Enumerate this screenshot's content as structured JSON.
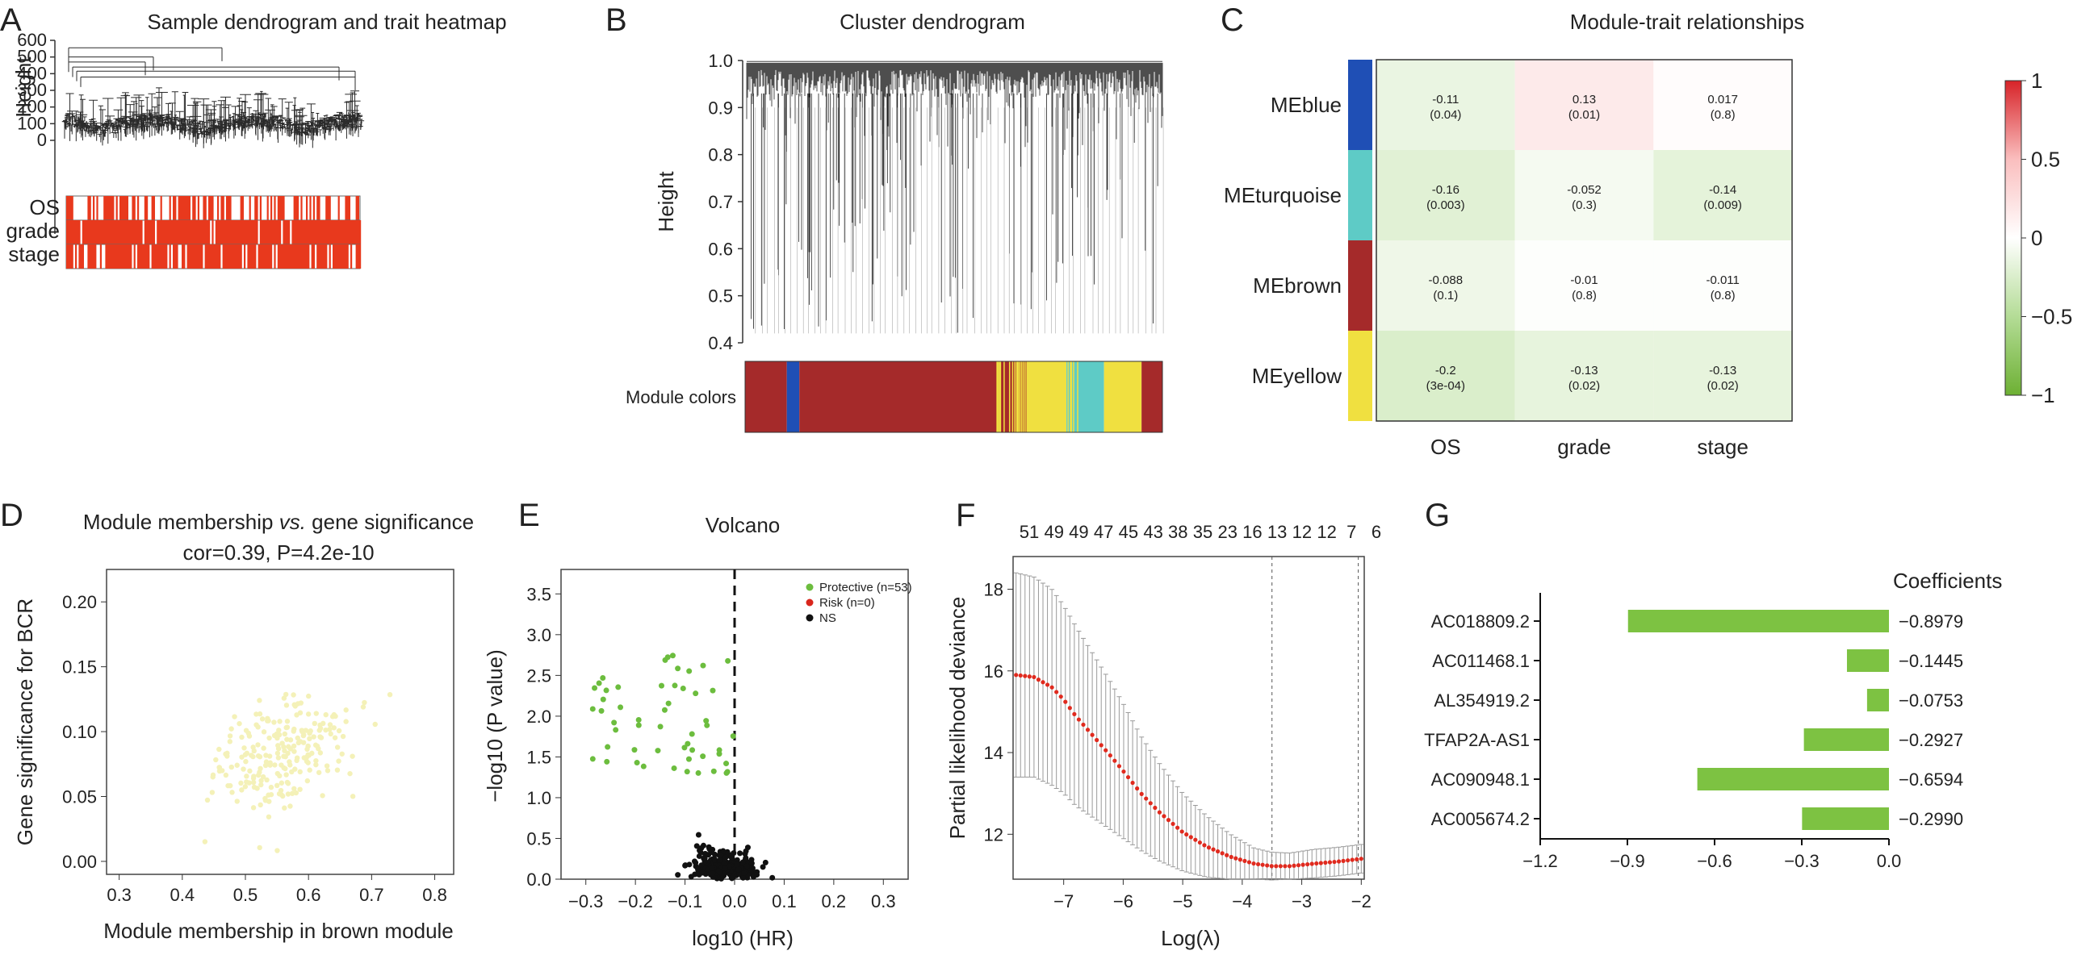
{
  "panels": {
    "A": {
      "letter": "A",
      "title": "Sample dendrogram and trait heatmap",
      "ylabel": "Height",
      "yticks": [
        0,
        100,
        200,
        300,
        400,
        500,
        600
      ],
      "traits": [
        "OS",
        "grade",
        "stage"
      ],
      "colors": {
        "trait": "#e8391d"
      }
    },
    "B": {
      "letter": "B",
      "title": "Cluster dendrogram",
      "ylabel": "Height",
      "yticks": [
        "0.4",
        "0.5",
        "0.6",
        "0.7",
        "0.8",
        "0.9",
        "1.0"
      ],
      "module_label": "Module colors",
      "module_segments": [
        {
          "color": "#a52a2a",
          "w": 0.1
        },
        {
          "color": "#1f4fb5",
          "w": 0.03
        },
        {
          "color": "#a52a2a",
          "w": 0.56
        },
        {
          "color": "#f0e040",
          "w": 0.08
        },
        {
          "color": "#5ecbc6",
          "w": 0.09
        },
        {
          "color": "#f0e040",
          "w": 0.09
        },
        {
          "color": "#a52a2a",
          "w": 0.05
        }
      ]
    },
    "C": {
      "letter": "C",
      "title": "Module-trait relationships",
      "rows": [
        {
          "name": "MEblue",
          "color": "#1f4fb5"
        },
        {
          "name": "MEturquoise",
          "color": "#5ecbc6"
        },
        {
          "name": "MEbrown",
          "color": "#a52a2a"
        },
        {
          "name": "MEyellow",
          "color": "#f0e040"
        }
      ],
      "cols": [
        "OS",
        "grade",
        "stage"
      ],
      "cells": [
        [
          {
            "r": "-0.11",
            "p": "(0.04)"
          },
          {
            "r": "0.13",
            "p": "(0.01)"
          },
          {
            "r": "0.017",
            "p": "(0.8)"
          }
        ],
        [
          {
            "r": "-0.16",
            "p": "(0.003)"
          },
          {
            "r": "-0.052",
            "p": "(0.3)"
          },
          {
            "r": "-0.14",
            "p": "(0.009)"
          }
        ],
        [
          {
            "r": "-0.088",
            "p": "(0.1)"
          },
          {
            "r": "-0.01",
            "p": "(0.8)"
          },
          {
            "r": "-0.011",
            "p": "(0.8)"
          }
        ],
        [
          {
            "r": "-0.2",
            "p": "(3e-04)"
          },
          {
            "r": "-0.13",
            "p": "(0.02)"
          },
          {
            "r": "-0.13",
            "p": "(0.02)"
          }
        ]
      ],
      "legend_ticks": [
        "1",
        "0.5",
        "0",
        "-0.5",
        "-1"
      ]
    },
    "D": {
      "letter": "D",
      "title_pre": "Module membership ",
      "title_vs": "vs.",
      "title_post": " gene significance",
      "subtitle": "cor=0.39, P=4.2e-10",
      "xlabel": "Module membership in brown module",
      "ylabel": "Gene significance for BCR",
      "xticks": [
        "0.3",
        "0.4",
        "0.5",
        "0.6",
        "0.7",
        "0.8"
      ],
      "yticks": [
        "0.00",
        "0.05",
        "0.10",
        "0.15",
        "0.20"
      ],
      "colors": {
        "point": "#f4f1b8"
      }
    },
    "E": {
      "letter": "E",
      "title": "Volcano",
      "xlabel": "log10 (HR)",
      "ylabel": "−log10 (P value)",
      "xticks": [
        "−0.3",
        "−0.2",
        "−0.1",
        "0.0",
        "0.1",
        "0.2",
        "0.3"
      ],
      "yticks": [
        "0.0",
        "0.5",
        "1.0",
        "1.5",
        "2.0",
        "2.5",
        "3.0",
        "3.5"
      ],
      "legend": [
        {
          "label": "Protective (n=53)",
          "color": "#6cbd3e"
        },
        {
          "label": "Risk (n=0)",
          "color": "#d9261c"
        },
        {
          "label": "NS",
          "color": "#111111"
        }
      ]
    },
    "F": {
      "letter": "F",
      "xlabel": "Log(λ)",
      "ylabel": "Partial likelihood deviance",
      "xticks": [
        "−7",
        "−6",
        "−5",
        "−4",
        "−3",
        "−2"
      ],
      "yticks": [
        "12",
        "14",
        "16",
        "18"
      ],
      "top_counts": [
        "51",
        "49",
        "49",
        "47",
        "45",
        "43",
        "38",
        "35",
        "23",
        "16",
        "13",
        "12",
        "12",
        "7",
        "6"
      ],
      "colors": {
        "curve": "#e02a1e",
        "bars": "#9a9a9a"
      }
    },
    "G": {
      "letter": "G",
      "title": "Coefficients",
      "xticks": [
        "−1.2",
        "−0.9",
        "−0.6",
        "−0.3",
        "0.0"
      ],
      "colors": {
        "bar": "#7dc242"
      }
    }
  },
  "chart_data": [
    {
      "panel": "A",
      "type": "dendrogram",
      "title": "Sample dendrogram and trait heatmap",
      "ylabel": "Height",
      "ylim": [
        0,
        650
      ],
      "trait_rows": [
        "OS",
        "grade",
        "stage"
      ]
    },
    {
      "panel": "B",
      "type": "dendrogram",
      "title": "Cluster dendrogram",
      "ylabel": "Height",
      "ylim": [
        0.4,
        1.0
      ]
    },
    {
      "panel": "C",
      "type": "heatmap",
      "title": "Module-trait relationships",
      "rows": [
        "MEblue",
        "MEturquoise",
        "MEbrown",
        "MEyellow"
      ],
      "cols": [
        "OS",
        "grade",
        "stage"
      ],
      "values": [
        [
          -0.11,
          0.13,
          0.017
        ],
        [
          -0.16,
          -0.052,
          -0.14
        ],
        [
          -0.088,
          -0.01,
          -0.011
        ],
        [
          -0.2,
          -0.13,
          -0.13
        ]
      ],
      "pvalues": [
        "0.04",
        "0.01",
        "0.8",
        "0.003",
        "0.3",
        "0.009",
        "0.1",
        "0.8",
        "0.8",
        "3e-04",
        "0.02",
        "0.02"
      ],
      "scale": [
        -1,
        1
      ]
    },
    {
      "panel": "D",
      "type": "scatter",
      "title": "Module membership vs. gene significance",
      "subtitle": "cor=0.39, P=4.2e-10",
      "xlabel": "Module membership in brown module",
      "ylabel": "Gene significance for BCR",
      "xlim": [
        0.28,
        0.83
      ],
      "ylim": [
        -0.01,
        0.225
      ],
      "correlation": 0.39,
      "p_value": "4.2e-10",
      "n_points": 230
    },
    {
      "panel": "E",
      "type": "scatter",
      "title": "Volcano",
      "xlabel": "log10 (HR)",
      "ylabel": "−log10 (P value)",
      "xlim": [
        -0.35,
        0.35
      ],
      "ylim": [
        0,
        3.8
      ],
      "series": [
        {
          "name": "Protective (n=53)",
          "n": 53
        },
        {
          "name": "Risk (n=0)",
          "n": 0
        },
        {
          "name": "NS",
          "n": 220
        }
      ]
    },
    {
      "panel": "F",
      "type": "line",
      "xlabel": "Log(λ)",
      "ylabel": "Partial likelihood deviance",
      "xlim": [
        -7.85,
        -1.95
      ],
      "ylim": [
        10.9,
        18.8
      ],
      "x": [
        -7.8,
        -7.5,
        -7.2,
        -7.0,
        -6.8,
        -6.5,
        -6.2,
        -6.0,
        -5.7,
        -5.4,
        -5.0,
        -4.6,
        -4.2,
        -3.8,
        -3.5,
        -3.2,
        -2.8,
        -2.4,
        -2.0
      ],
      "y": [
        15.9,
        15.85,
        15.6,
        15.3,
        14.9,
        14.4,
        13.9,
        13.55,
        13.0,
        12.55,
        12.05,
        11.7,
        11.45,
        11.28,
        11.22,
        11.22,
        11.28,
        11.33,
        11.4
      ],
      "ci_low": [
        13.4,
        13.4,
        13.2,
        13.0,
        12.7,
        12.4,
        12.1,
        11.9,
        11.6,
        11.35,
        11.1,
        10.95,
        10.9,
        10.9,
        10.88,
        10.9,
        10.93,
        10.98,
        11.05
      ],
      "ci_high": [
        18.4,
        18.3,
        18.0,
        17.6,
        17.1,
        16.4,
        15.7,
        15.2,
        14.4,
        13.75,
        13.0,
        12.45,
        12.0,
        11.66,
        11.56,
        11.54,
        11.63,
        11.68,
        11.75
      ],
      "lambda_min": -3.5,
      "lambda_1se": -2.05,
      "top_counts": [
        51,
        49,
        49,
        47,
        45,
        43,
        38,
        35,
        23,
        16,
        13,
        12,
        12,
        7,
        6
      ]
    },
    {
      "panel": "G",
      "type": "bar",
      "title": "Coefficients",
      "categories": [
        "AC018809.2",
        "AC011468.1",
        "AL354919.2",
        "TFAP2A-AS1",
        "AC090948.1",
        "AC005674.2"
      ],
      "values": [
        -0.8979,
        -0.1445,
        -0.0753,
        -0.2927,
        -0.6594,
        -0.299
      ],
      "labels": [
        "−0.8979",
        "−0.1445",
        "−0.0753",
        "−0.2927",
        "−0.6594",
        "−0.2990"
      ],
      "xlim": [
        -1.2,
        0.0
      ]
    }
  ]
}
